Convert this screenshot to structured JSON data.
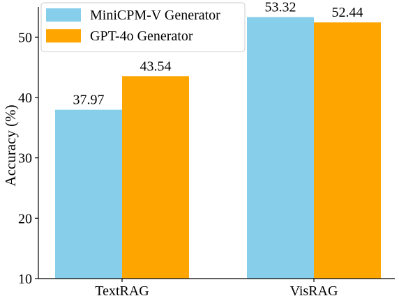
{
  "chart_data": {
    "type": "bar",
    "categories": [
      "TextRAG",
      "VisRAG"
    ],
    "series": [
      {
        "name": "MiniCPM-V Generator",
        "values": [
          37.97,
          53.32
        ],
        "color": "#87CEEB"
      },
      {
        "name": "GPT-4o Generator",
        "values": [
          43.54,
          52.44
        ],
        "color": "#FFA500"
      }
    ],
    "ylabel": "Accuracy (%)",
    "xlabel": "",
    "ylim": [
      10,
      55
    ],
    "yticks": [
      10,
      20,
      30,
      40,
      50
    ],
    "grid": false,
    "legend": "top-left"
  }
}
